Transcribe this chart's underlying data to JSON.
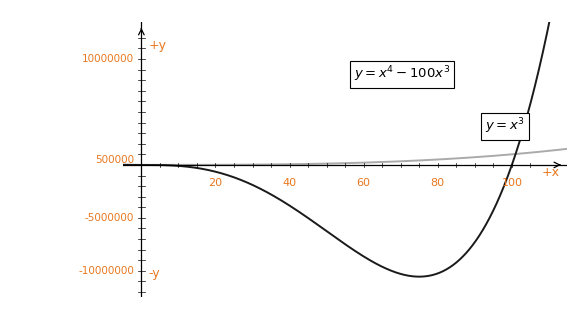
{
  "x_min": -5,
  "x_max": 115,
  "y_min": -12500000,
  "y_max": 13500000,
  "x_ticks": [
    20,
    40,
    60,
    80,
    100
  ],
  "y_ticks": [
    -10000000,
    -5000000,
    500000,
    10000000
  ],
  "y_tick_labels": [
    "-10000000",
    "-5000000",
    "500000",
    "10000000"
  ],
  "color_f1": "#1a1a1a",
  "color_f2": "#aaaaaa",
  "tick_color": "#e87820",
  "axis_color": "#000000",
  "bg_color": "#ffffff",
  "fig_width": 5.85,
  "fig_height": 3.13
}
